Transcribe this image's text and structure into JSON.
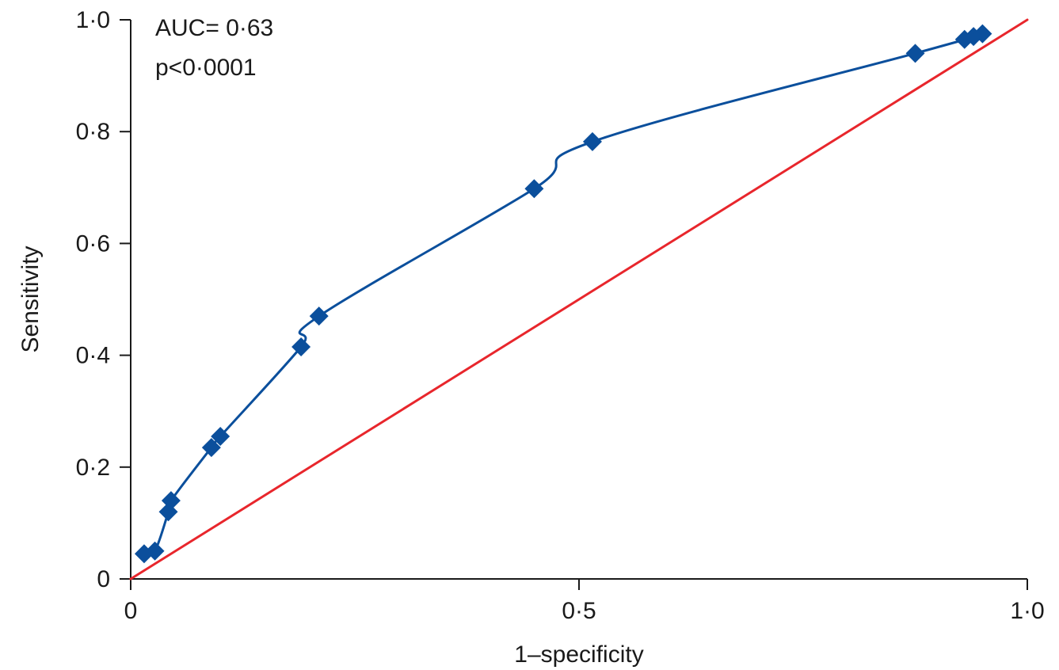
{
  "chart_data": {
    "type": "line",
    "title": "",
    "xlabel": "1–specificity",
    "ylabel": "Sensitivity",
    "xlim": [
      0,
      1
    ],
    "ylim": [
      0,
      1
    ],
    "x_ticks": [
      0,
      0.5,
      1.0
    ],
    "x_tick_labels": [
      "0",
      "0·5",
      "1·0"
    ],
    "y_ticks": [
      0,
      0.2,
      0.4,
      0.6,
      0.8,
      1.0
    ],
    "y_tick_labels": [
      "0",
      "0·2",
      "0·4",
      "0·6",
      "0·8",
      "1·0"
    ],
    "grid": false,
    "annotations": [
      "AUC= 0·63",
      "p<0·0001"
    ],
    "series": [
      {
        "color": "#0b4f9c",
        "marker": "diamond",
        "x": [
          0.015,
          0.027,
          0.042,
          0.045,
          0.09,
          0.1,
          0.19,
          0.21,
          0.45,
          0.515,
          0.875,
          0.93,
          0.94,
          0.95
        ],
        "y": [
          0.045,
          0.05,
          0.12,
          0.14,
          0.235,
          0.255,
          0.415,
          0.47,
          0.698,
          0.782,
          0.94,
          0.965,
          0.97,
          0.975
        ]
      },
      {
        "color": "#e8262c",
        "marker": "none",
        "x": [
          0,
          1
        ],
        "y": [
          0,
          1
        ]
      }
    ]
  }
}
